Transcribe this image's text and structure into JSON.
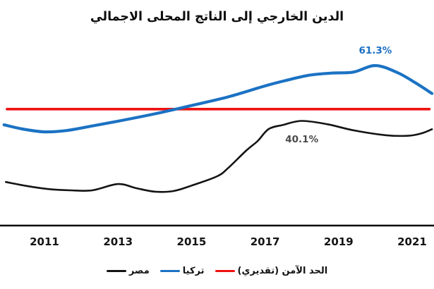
{
  "title": "الدين الخارجي إلى الناتج المحلى الاجمالي",
  "colors": {
    "egypt_line": "#141414",
    "turkey_line": "#1b72c3",
    "limit_line": "#ee1111",
    "axis_line": "#000000",
    "turkey_label": "#1b6ec2",
    "egypt_label": "#4a4a4a",
    "background": "#ffffff"
  },
  "legend": [
    {
      "id": "egypt",
      "label": "مصر",
      "color": "#141414"
    },
    {
      "id": "turkey",
      "label": "تركيا",
      "color": "#1b72c3"
    },
    {
      "id": "limit",
      "label": "الحد الآمن (تقديري)",
      "color": "#ee1111"
    }
  ],
  "chart_data": {
    "type": "line",
    "title": "الدين الخارجي إلى الناتج المحلى الاجمالي",
    "xlabel": "",
    "ylabel": "",
    "x_ticks": [
      2011,
      2013,
      2015,
      2017,
      2019,
      2021
    ],
    "x_range": [
      2009.9,
      2021.55
    ],
    "y_range": [
      0,
      70
    ],
    "grid": false,
    "legend_position": "bottom",
    "series": [
      {
        "id": "egypt",
        "name": "مصر",
        "color": "#141414",
        "stroke_width": 2.6,
        "points": [
          [
            2009.95,
            16.7
          ],
          [
            2010.5,
            15.2
          ],
          [
            2011.1,
            14.0
          ],
          [
            2011.7,
            13.5
          ],
          [
            2012.3,
            13.5
          ],
          [
            2013.0,
            15.9
          ],
          [
            2013.5,
            14.3
          ],
          [
            2014.0,
            13.0
          ],
          [
            2014.5,
            13.2
          ],
          [
            2015.0,
            15.3
          ],
          [
            2015.7,
            18.9
          ],
          [
            2016.0,
            22.1
          ],
          [
            2016.5,
            28.9
          ],
          [
            2016.8,
            32.4
          ],
          [
            2017.1,
            37.0
          ],
          [
            2017.5,
            38.6
          ],
          [
            2018.0,
            40.1
          ],
          [
            2018.7,
            38.8
          ],
          [
            2019.4,
            36.5
          ],
          [
            2020.3,
            34.6
          ],
          [
            2020.9,
            34.4
          ],
          [
            2021.25,
            35.3
          ],
          [
            2021.54,
            36.9
          ]
        ]
      },
      {
        "id": "turkey",
        "name": "تركيا",
        "color": "#1b72c3",
        "stroke_width": 4.2,
        "points": [
          [
            2009.9,
            38.6
          ],
          [
            2010.4,
            37.0
          ],
          [
            2011.0,
            35.9
          ],
          [
            2011.6,
            36.4
          ],
          [
            2012.2,
            37.9
          ],
          [
            2013.0,
            40.0
          ],
          [
            2014.0,
            42.8
          ],
          [
            2015.0,
            46.0
          ],
          [
            2016.0,
            49.3
          ],
          [
            2017.0,
            53.5
          ],
          [
            2017.6,
            55.7
          ],
          [
            2018.2,
            57.6
          ],
          [
            2018.8,
            58.4
          ],
          [
            2019.4,
            58.8
          ],
          [
            2020.0,
            61.3
          ],
          [
            2020.6,
            58.6
          ],
          [
            2021.1,
            54.6
          ],
          [
            2021.54,
            50.6
          ]
        ]
      },
      {
        "id": "limit",
        "name": "الحد الآمن (تقديري)",
        "color": "#ee1111",
        "stroke_width": 3.6,
        "points": [
          [
            2009.98,
            44.6
          ],
          [
            2021.47,
            44.6
          ]
        ]
      }
    ],
    "annotations": [
      {
        "text": "61.3%",
        "series": "turkey",
        "year": 2020.0,
        "value": 61.3,
        "placement": "above",
        "color": "#1b6ec2"
      },
      {
        "text": "40.1%",
        "series": "egypt",
        "year": 2018.0,
        "value": 40.1,
        "placement": "below",
        "color": "#4a4a4a"
      }
    ]
  }
}
